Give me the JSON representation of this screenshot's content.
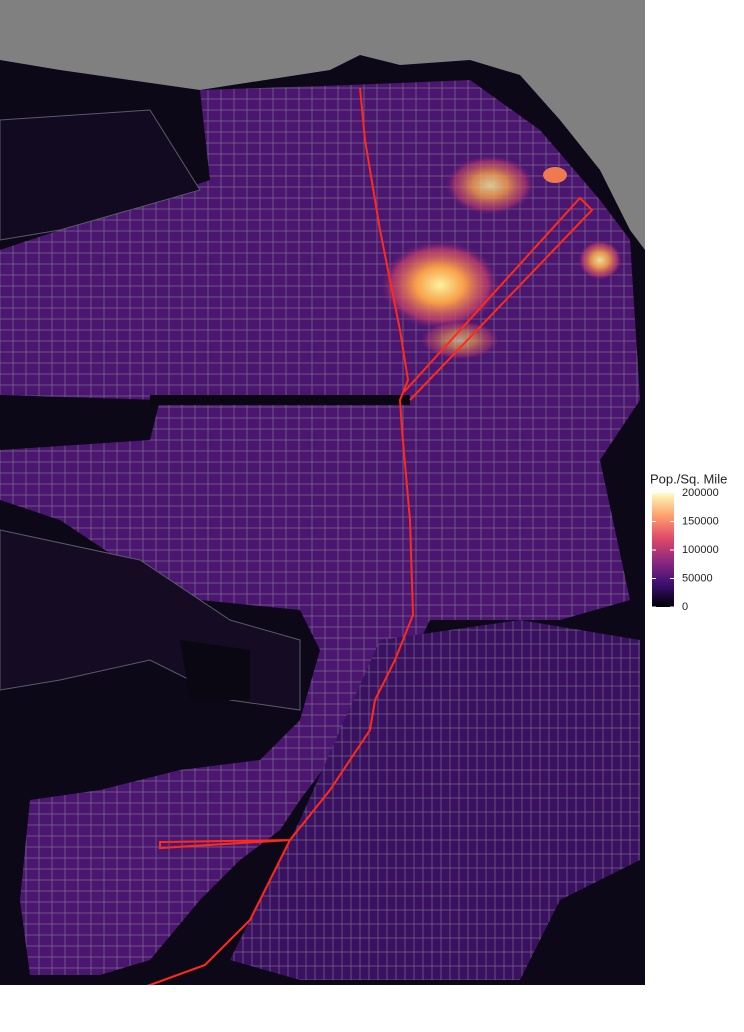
{
  "legend": {
    "title": "Pop./Sq. Mile",
    "lim": [
      0,
      200000
    ],
    "ticks": [
      0,
      50000,
      100000,
      150000,
      200000
    ],
    "colors": [
      "#000004",
      "#3b0f70",
      "#8c2981",
      "#de4968",
      "#fe9f6d",
      "#fcfdbf"
    ]
  }
}
